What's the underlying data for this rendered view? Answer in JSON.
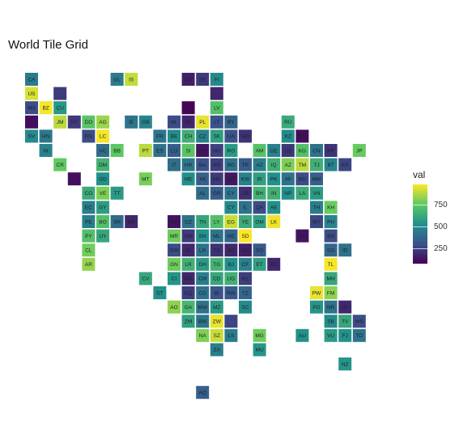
{
  "chart_data": {
    "type": "heatmap",
    "title": "World Tile Grid",
    "legend": {
      "title": "val",
      "ticks": [
        "750",
        "500",
        "250"
      ],
      "tick_values": [
        750,
        500,
        250
      ],
      "range": [
        100,
        950
      ],
      "colormap": "viridis",
      "placement": "right"
    },
    "tiles": [
      {
        "code": "CA",
        "x": 1,
        "y": 1,
        "val": 450
      },
      {
        "code": "GL",
        "x": 7,
        "y": 1,
        "val": 450
      },
      {
        "code": "IS",
        "x": 8,
        "y": 1,
        "val": 870
      },
      {
        "code": "NO",
        "x": 12,
        "y": 1,
        "val": 180
      },
      {
        "code": "SE",
        "x": 13,
        "y": 1,
        "val": 250
      },
      {
        "code": "FI",
        "x": 14,
        "y": 1,
        "val": 500
      },
      {
        "code": "US",
        "x": 1,
        "y": 2,
        "val": 900
      },
      {
        "code": "",
        "x": 3,
        "y": 2,
        "val": 250
      },
      {
        "code": "",
        "x": 14,
        "y": 2,
        "val": 200
      },
      {
        "code": "MX",
        "x": 1,
        "y": 3,
        "val": 300
      },
      {
        "code": "BZ",
        "x": 2,
        "y": 3,
        "val": 940
      },
      {
        "code": "CU",
        "x": 3,
        "y": 3,
        "val": 550
      },
      {
        "code": "",
        "x": 12,
        "y": 3,
        "val": 110
      },
      {
        "code": "LV",
        "x": 14,
        "y": 3,
        "val": 700
      },
      {
        "code": "",
        "x": 1,
        "y": 4,
        "val": 130
      },
      {
        "code": "JM",
        "x": 3,
        "y": 4,
        "val": 860
      },
      {
        "code": "HT",
        "x": 4,
        "y": 4,
        "val": 250
      },
      {
        "code": "DO",
        "x": 5,
        "y": 4,
        "val": 720
      },
      {
        "code": "AG",
        "x": 6,
        "y": 4,
        "val": 820
      },
      {
        "code": "IE",
        "x": 8,
        "y": 4,
        "val": 430
      },
      {
        "code": "GB",
        "x": 9,
        "y": 4,
        "val": 480
      },
      {
        "code": "NL",
        "x": 11,
        "y": 4,
        "val": 300
      },
      {
        "code": "DE",
        "x": 12,
        "y": 4,
        "val": 200
      },
      {
        "code": "PL",
        "x": 13,
        "y": 4,
        "val": 920
      },
      {
        "code": "LT",
        "x": 14,
        "y": 4,
        "val": 320
      },
      {
        "code": "BY",
        "x": 15,
        "y": 4,
        "val": 370
      },
      {
        "code": "RU",
        "x": 19,
        "y": 4,
        "val": 620
      },
      {
        "code": "SV",
        "x": 1,
        "y": 5,
        "val": 500
      },
      {
        "code": "HN",
        "x": 2,
        "y": 5,
        "val": 440
      },
      {
        "code": "KN",
        "x": 5,
        "y": 5,
        "val": 300
      },
      {
        "code": "LC",
        "x": 6,
        "y": 5,
        "val": 940
      },
      {
        "code": "FR",
        "x": 10,
        "y": 5,
        "val": 430
      },
      {
        "code": "BE",
        "x": 11,
        "y": 5,
        "val": 510
      },
      {
        "code": "CH",
        "x": 12,
        "y": 5,
        "val": 640
      },
      {
        "code": "CZ",
        "x": 13,
        "y": 5,
        "val": 470
      },
      {
        "code": "SK",
        "x": 14,
        "y": 5,
        "val": 580
      },
      {
        "code": "UA",
        "x": 15,
        "y": 5,
        "val": 320
      },
      {
        "code": "MD",
        "x": 16,
        "y": 5,
        "val": 230
      },
      {
        "code": "KZ",
        "x": 19,
        "y": 5,
        "val": 500
      },
      {
        "code": "MN",
        "x": 20,
        "y": 5,
        "val": 130
      },
      {
        "code": "NI",
        "x": 2,
        "y": 6,
        "val": 470
      },
      {
        "code": "VC",
        "x": 6,
        "y": 6,
        "val": 400
      },
      {
        "code": "BB",
        "x": 7,
        "y": 6,
        "val": 730
      },
      {
        "code": "PT",
        "x": 9,
        "y": 6,
        "val": 860
      },
      {
        "code": "ES",
        "x": 10,
        "y": 6,
        "val": 420
      },
      {
        "code": "LU",
        "x": 11,
        "y": 6,
        "val": 350
      },
      {
        "code": "SI",
        "x": 12,
        "y": 6,
        "val": 720
      },
      {
        "code": "HR",
        "x": 13,
        "y": 6,
        "val": 150
      },
      {
        "code": "HU",
        "x": 14,
        "y": 6,
        "val": 270
      },
      {
        "code": "RO",
        "x": 15,
        "y": 6,
        "val": 560
      },
      {
        "code": "AM",
        "x": 17,
        "y": 6,
        "val": 710
      },
      {
        "code": "GE",
        "x": 18,
        "y": 6,
        "val": 470
      },
      {
        "code": "UZ",
        "x": 19,
        "y": 6,
        "val": 240
      },
      {
        "code": "KG",
        "x": 20,
        "y": 6,
        "val": 700
      },
      {
        "code": "CN",
        "x": 21,
        "y": 6,
        "val": 420
      },
      {
        "code": "KP",
        "x": 22,
        "y": 6,
        "val": 230
      },
      {
        "code": "JP",
        "x": 24,
        "y": 6,
        "val": 750
      },
      {
        "code": "CR",
        "x": 3,
        "y": 7,
        "val": 740
      },
      {
        "code": "DM",
        "x": 6,
        "y": 7,
        "val": 650
      },
      {
        "code": "IT",
        "x": 11,
        "y": 7,
        "val": 410
      },
      {
        "code": "HR",
        "x": 12,
        "y": 7,
        "val": 440
      },
      {
        "code": "BA",
        "x": 13,
        "y": 7,
        "val": 320
      },
      {
        "code": "RS",
        "x": 14,
        "y": 7,
        "val": 260
      },
      {
        "code": "BG",
        "x": 15,
        "y": 7,
        "val": 420
      },
      {
        "code": "TR",
        "x": 16,
        "y": 7,
        "val": 350
      },
      {
        "code": "AZ",
        "x": 17,
        "y": 7,
        "val": 460
      },
      {
        "code": "IQ",
        "x": 18,
        "y": 7,
        "val": 640
      },
      {
        "code": "AZ",
        "x": 19,
        "y": 7,
        "val": 780
      },
      {
        "code": "TM",
        "x": 20,
        "y": 7,
        "val": 860
      },
      {
        "code": "TJ",
        "x": 21,
        "y": 7,
        "val": 640
      },
      {
        "code": "BT",
        "x": 22,
        "y": 7,
        "val": 480
      },
      {
        "code": "KR",
        "x": 23,
        "y": 7,
        "val": 280
      },
      {
        "code": "",
        "x": 4,
        "y": 8,
        "val": 140
      },
      {
        "code": "GD",
        "x": 6,
        "y": 8,
        "val": 520
      },
      {
        "code": "MT",
        "x": 9,
        "y": 8,
        "val": 770
      },
      {
        "code": "ME",
        "x": 12,
        "y": 8,
        "val": 520
      },
      {
        "code": "XK",
        "x": 13,
        "y": 8,
        "val": 360
      },
      {
        "code": "MK",
        "x": 14,
        "y": 8,
        "val": 250
      },
      {
        "code": "GR",
        "x": 15,
        "y": 8,
        "val": 160
      },
      {
        "code": "KW",
        "x": 16,
        "y": 8,
        "val": 470
      },
      {
        "code": "IR",
        "x": 17,
        "y": 8,
        "val": 580
      },
      {
        "code": "PK",
        "x": 18,
        "y": 8,
        "val": 520
      },
      {
        "code": "AF",
        "x": 19,
        "y": 8,
        "val": 420
      },
      {
        "code": "BD",
        "x": 20,
        "y": 8,
        "val": 300
      },
      {
        "code": "MM",
        "x": 21,
        "y": 8,
        "val": 360
      },
      {
        "code": "CO",
        "x": 5,
        "y": 9,
        "val": 620
      },
      {
        "code": "VE",
        "x": 6,
        "y": 9,
        "val": 780
      },
      {
        "code": "TT",
        "x": 7,
        "y": 9,
        "val": 560
      },
      {
        "code": "AL",
        "x": 13,
        "y": 9,
        "val": 400
      },
      {
        "code": "GR",
        "x": 14,
        "y": 9,
        "val": 350
      },
      {
        "code": "CY",
        "x": 15,
        "y": 9,
        "val": 420
      },
      {
        "code": "LB",
        "x": 16,
        "y": 9,
        "val": 220
      },
      {
        "code": "BH",
        "x": 17,
        "y": 9,
        "val": 640
      },
      {
        "code": "IN",
        "x": 18,
        "y": 9,
        "val": 640
      },
      {
        "code": "NP",
        "x": 19,
        "y": 9,
        "val": 520
      },
      {
        "code": "LA",
        "x": 20,
        "y": 9,
        "val": 620
      },
      {
        "code": "VN",
        "x": 21,
        "y": 9,
        "val": 560
      },
      {
        "code": "EC",
        "x": 5,
        "y": 10,
        "val": 460
      },
      {
        "code": "GY",
        "x": 6,
        "y": 10,
        "val": 570
      },
      {
        "code": "CY",
        "x": 15,
        "y": 10,
        "val": 500
      },
      {
        "code": "IL",
        "x": 16,
        "y": 10,
        "val": 420
      },
      {
        "code": "QA",
        "x": 17,
        "y": 10,
        "val": 300
      },
      {
        "code": "AE",
        "x": 18,
        "y": 10,
        "val": 520
      },
      {
        "code": "TH",
        "x": 21,
        "y": 10,
        "val": 460
      },
      {
        "code": "KH",
        "x": 22,
        "y": 10,
        "val": 750
      },
      {
        "code": "PE",
        "x": 5,
        "y": 11,
        "val": 460
      },
      {
        "code": "BO",
        "x": 6,
        "y": 11,
        "val": 700
      },
      {
        "code": "SR",
        "x": 7,
        "y": 11,
        "val": 400
      },
      {
        "code": "BR",
        "x": 8,
        "y": 11,
        "val": 200
      },
      {
        "code": "MA",
        "x": 11,
        "y": 11,
        "val": 150
      },
      {
        "code": "DZ",
        "x": 12,
        "y": 11,
        "val": 420
      },
      {
        "code": "TN",
        "x": 13,
        "y": 11,
        "val": 600
      },
      {
        "code": "LY",
        "x": 14,
        "y": 11,
        "val": 700
      },
      {
        "code": "EG",
        "x": 15,
        "y": 11,
        "val": 880
      },
      {
        "code": "YE",
        "x": 16,
        "y": 11,
        "val": 620
      },
      {
        "code": "OM",
        "x": 17,
        "y": 11,
        "val": 580
      },
      {
        "code": "LK",
        "x": 18,
        "y": 11,
        "val": 930
      },
      {
        "code": "MY",
        "x": 21,
        "y": 11,
        "val": 280
      },
      {
        "code": "PH",
        "x": 22,
        "y": 11,
        "val": 480
      },
      {
        "code": "PY",
        "x": 5,
        "y": 12,
        "val": 700
      },
      {
        "code": "UY",
        "x": 6,
        "y": 12,
        "val": 600
      },
      {
        "code": "MR",
        "x": 11,
        "y": 12,
        "val": 760
      },
      {
        "code": "GM",
        "x": 12,
        "y": 12,
        "val": 250
      },
      {
        "code": "SN",
        "x": 13,
        "y": 12,
        "val": 520
      },
      {
        "code": "ML",
        "x": 14,
        "y": 12,
        "val": 430
      },
      {
        "code": "NE",
        "x": 15,
        "y": 12,
        "val": 380
      },
      {
        "code": "SD",
        "x": 16,
        "y": 12,
        "val": 950
      },
      {
        "code": "MV",
        "x": 20,
        "y": 12,
        "val": 150
      },
      {
        "code": "BN",
        "x": 22,
        "y": 12,
        "val": 300
      },
      {
        "code": "CL",
        "x": 5,
        "y": 13,
        "val": 760
      },
      {
        "code": "GW",
        "x": 11,
        "y": 13,
        "val": 300
      },
      {
        "code": "SL",
        "x": 12,
        "y": 13,
        "val": 200
      },
      {
        "code": "LR",
        "x": 13,
        "y": 13,
        "val": 420
      },
      {
        "code": "TG",
        "x": 14,
        "y": 13,
        "val": 230
      },
      {
        "code": "BJ",
        "x": 15,
        "y": 13,
        "val": 200
      },
      {
        "code": "NG",
        "x": 16,
        "y": 13,
        "val": 180
      },
      {
        "code": "SO",
        "x": 17,
        "y": 13,
        "val": 340
      },
      {
        "code": "SG",
        "x": 22,
        "y": 13,
        "val": 380
      },
      {
        "code": "ID",
        "x": 23,
        "y": 13,
        "val": 420
      },
      {
        "code": "AR",
        "x": 5,
        "y": 14,
        "val": 810
      },
      {
        "code": "GN",
        "x": 11,
        "y": 14,
        "val": 760
      },
      {
        "code": "LR",
        "x": 12,
        "y": 14,
        "val": 640
      },
      {
        "code": "GH",
        "x": 13,
        "y": 14,
        "val": 560
      },
      {
        "code": "TG",
        "x": 14,
        "y": 14,
        "val": 650
      },
      {
        "code": "BJ",
        "x": 15,
        "y": 14,
        "val": 520
      },
      {
        "code": "CF",
        "x": 16,
        "y": 14,
        "val": 470
      },
      {
        "code": "ET",
        "x": 17,
        "y": 14,
        "val": 580
      },
      {
        "code": "DJ",
        "x": 18,
        "y": 14,
        "val": 200
      },
      {
        "code": "TL",
        "x": 22,
        "y": 14,
        "val": 940
      },
      {
        "code": "CV",
        "x": 9,
        "y": 15,
        "val": 600
      },
      {
        "code": "CI",
        "x": 11,
        "y": 15,
        "val": 540
      },
      {
        "code": "NG",
        "x": 12,
        "y": 15,
        "val": 200
      },
      {
        "code": "CM",
        "x": 13,
        "y": 15,
        "val": 460
      },
      {
        "code": "CD",
        "x": 14,
        "y": 15,
        "val": 600
      },
      {
        "code": "UG",
        "x": 15,
        "y": 15,
        "val": 640
      },
      {
        "code": "KE",
        "x": 16,
        "y": 15,
        "val": 260
      },
      {
        "code": "MH",
        "x": 22,
        "y": 15,
        "val": 600
      },
      {
        "code": "ST",
        "x": 10,
        "y": 16,
        "val": 520
      },
      {
        "code": "GQ",
        "x": 12,
        "y": 16,
        "val": 260
      },
      {
        "code": "CG",
        "x": 13,
        "y": 16,
        "val": 420
      },
      {
        "code": "BI",
        "x": 14,
        "y": 16,
        "val": 320
      },
      {
        "code": "RW",
        "x": 15,
        "y": 16,
        "val": 340
      },
      {
        "code": "TZ",
        "x": 16,
        "y": 16,
        "val": 380
      },
      {
        "code": "PW",
        "x": 21,
        "y": 16,
        "val": 920
      },
      {
        "code": "FM",
        "x": 22,
        "y": 16,
        "val": 800
      },
      {
        "code": "AO",
        "x": 11,
        "y": 17,
        "val": 800
      },
      {
        "code": "GA",
        "x": 12,
        "y": 17,
        "val": 660
      },
      {
        "code": "MW",
        "x": 13,
        "y": 17,
        "val": 420
      },
      {
        "code": "MZ",
        "x": 14,
        "y": 17,
        "val": 560
      },
      {
        "code": "SC",
        "x": 16,
        "y": 17,
        "val": 500
      },
      {
        "code": "PG",
        "x": 21,
        "y": 17,
        "val": 540
      },
      {
        "code": "NR",
        "x": 22,
        "y": 17,
        "val": 420
      },
      {
        "code": "KI",
        "x": 23,
        "y": 17,
        "val": 200
      },
      {
        "code": "ZM",
        "x": 12,
        "y": 18,
        "val": 580
      },
      {
        "code": "BW",
        "x": 13,
        "y": 18,
        "val": 430
      },
      {
        "code": "ZW",
        "x": 14,
        "y": 18,
        "val": 920
      },
      {
        "code": "",
        "x": 15,
        "y": 18,
        "val": 280
      },
      {
        "code": "SB",
        "x": 22,
        "y": 18,
        "val": 500
      },
      {
        "code": "TV",
        "x": 23,
        "y": 18,
        "val": 600
      },
      {
        "code": "WS",
        "x": 24,
        "y": 18,
        "val": 300
      },
      {
        "code": "NA",
        "x": 13,
        "y": 19,
        "val": 780
      },
      {
        "code": "SZ",
        "x": 14,
        "y": 19,
        "val": 880
      },
      {
        "code": "LS",
        "x": 15,
        "y": 19,
        "val": 450
      },
      {
        "code": "MG",
        "x": 17,
        "y": 19,
        "val": 760
      },
      {
        "code": "AU",
        "x": 20,
        "y": 19,
        "val": 530
      },
      {
        "code": "VU",
        "x": 22,
        "y": 19,
        "val": 560
      },
      {
        "code": "FJ",
        "x": 23,
        "y": 19,
        "val": 530
      },
      {
        "code": "TO",
        "x": 24,
        "y": 19,
        "val": 420
      },
      {
        "code": "ZA",
        "x": 14,
        "y": 20,
        "val": 460
      },
      {
        "code": "MU",
        "x": 17,
        "y": 20,
        "val": 540
      },
      {
        "code": "NZ",
        "x": 23,
        "y": 21,
        "val": 540
      },
      {
        "code": "AQ",
        "x": 13,
        "y": 23,
        "val": 360
      }
    ]
  }
}
